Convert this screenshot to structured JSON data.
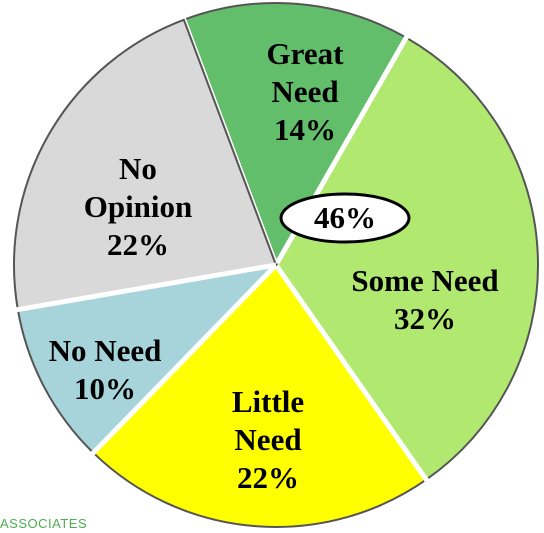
{
  "chart_data": {
    "type": "pie",
    "categories": [
      "Great Need",
      "Some Need",
      "Little Need",
      "No Need",
      "No Opinion"
    ],
    "values": [
      14,
      32,
      22,
      10,
      22
    ],
    "value_labels": [
      "14%",
      "32%",
      "22%",
      "10%",
      "22%"
    ],
    "colors": [
      "#63be6b",
      "#b0e870",
      "#ffff00",
      "#a6d4da",
      "#d9d9d9"
    ],
    "annotation": "46%",
    "footer": "ASSOCIATES"
  }
}
